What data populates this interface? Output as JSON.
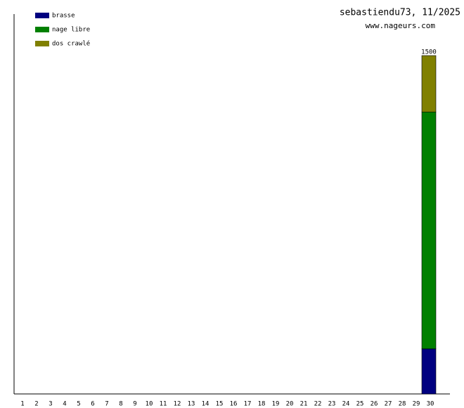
{
  "chart_data": {
    "type": "stacked-bar",
    "title": "sebastiendu73, 11/2025",
    "subtitle": "www.nageurs.com",
    "categories": [
      "1",
      "2",
      "3",
      "4",
      "5",
      "6",
      "7",
      "8",
      "9",
      "10",
      "11",
      "12",
      "13",
      "14",
      "15",
      "16",
      "17",
      "18",
      "19",
      "20",
      "21",
      "22",
      "23",
      "24",
      "25",
      "26",
      "27",
      "28",
      "29",
      "30"
    ],
    "series": [
      {
        "name": "brasse",
        "color": "#000080",
        "values": [
          null,
          null,
          null,
          null,
          null,
          null,
          null,
          null,
          null,
          null,
          null,
          null,
          null,
          null,
          null,
          null,
          null,
          null,
          null,
          null,
          null,
          null,
          null,
          null,
          null,
          null,
          null,
          null,
          null,
          200
        ]
      },
      {
        "name": "nage libre",
        "color": "#008000",
        "values": [
          null,
          null,
          null,
          null,
          null,
          null,
          null,
          null,
          null,
          null,
          null,
          null,
          null,
          null,
          null,
          null,
          null,
          null,
          null,
          null,
          null,
          null,
          null,
          null,
          null,
          null,
          null,
          null,
          null,
          1050
        ]
      },
      {
        "name": "dos crawlé",
        "color": "#808000",
        "values": [
          null,
          null,
          null,
          null,
          null,
          null,
          null,
          null,
          null,
          null,
          null,
          null,
          null,
          null,
          null,
          null,
          null,
          null,
          null,
          null,
          null,
          null,
          null,
          null,
          null,
          null,
          null,
          null,
          null,
          250
        ]
      }
    ],
    "annotations": [
      {
        "x": "30",
        "label": "1500"
      }
    ],
    "ylim": [
      0,
      1684
    ],
    "legend": "top-left"
  }
}
